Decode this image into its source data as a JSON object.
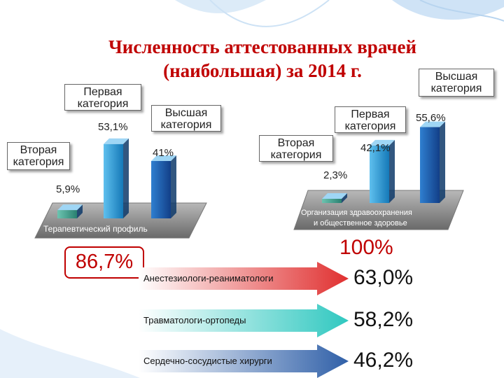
{
  "title_line1": "Численность аттестованных врачей",
  "title_line2": "(наибольшая) за 2014 г.",
  "chart_data": [
    {
      "type": "bar",
      "platform_label": "Терапевтический профиль",
      "categories": [
        "Вторая категория",
        "Первая категория",
        "Высшая категория"
      ],
      "values": [
        5.9,
        53.1,
        41
      ],
      "labels": [
        "5,9%",
        "53,1%",
        "41%"
      ],
      "ylim": [
        0,
        60
      ]
    },
    {
      "type": "bar",
      "platform_label": "Организация здравоохранения и общественное здоровье",
      "categories": [
        "Вторая категория",
        "Первая категория",
        "Высшая категория"
      ],
      "values": [
        2.3,
        42.1,
        55.6
      ],
      "labels": [
        "2,3%",
        "42,1%",
        "55,6%"
      ],
      "ylim": [
        0,
        60
      ]
    }
  ],
  "callouts": {
    "left_first": "Первая категория",
    "left_second": "Вторая категория",
    "left_top": "Высшая категория",
    "right_top": "Высшая категория",
    "right_first": "Первая категория",
    "right_second": "Вторая категория"
  },
  "summary": {
    "left_total": "86,7%",
    "right_total": "100%",
    "specialties": [
      {
        "label": "Анестезиологи-реаниматологи",
        "value": "63,0%",
        "color": "#e03030"
      },
      {
        "label": "Травматологи-ортопеды",
        "value": "58,2%",
        "color": "#30c8c0"
      },
      {
        "label": "Сердечно-сосудистые хирурги",
        "value": "46,2%",
        "color": "#3060a8"
      }
    ]
  },
  "colors": {
    "title": "#c00000",
    "bar_blue": "#1a8fd0",
    "bar_dark": "#1d5fb0",
    "bar_teal": "#3aa090",
    "platform": "#8c8c8c"
  }
}
